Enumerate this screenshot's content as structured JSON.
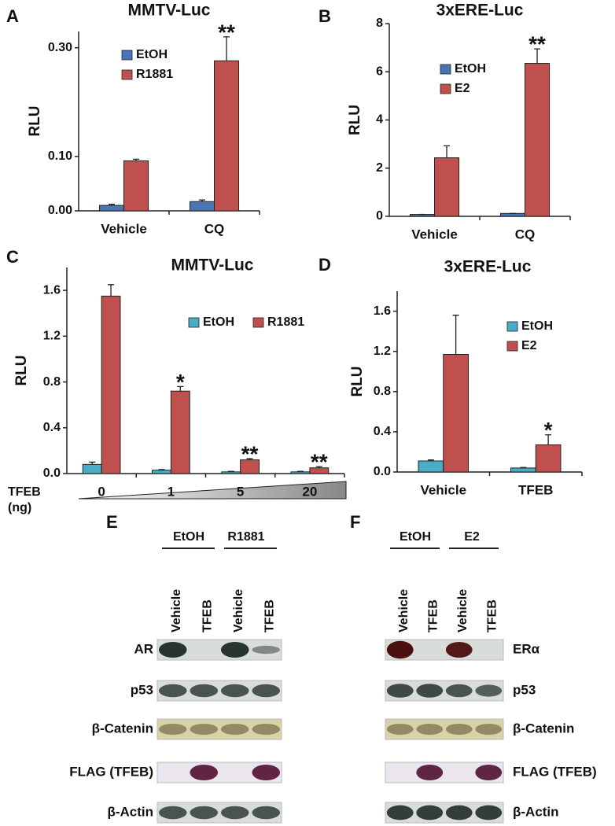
{
  "chart_data": [
    {
      "type": "bar",
      "panel_label": "A",
      "title": "MMTV-Luc",
      "y_label": "RLU",
      "categories": [
        "Vehicle",
        "CQ"
      ],
      "series": [
        {
          "name": "EtOH",
          "color": "#4a74b6",
          "values": [
            0.01,
            0.017
          ],
          "errors": [
            0.002,
            0.003
          ]
        },
        {
          "name": "R1881",
          "color": "#c0504d",
          "values": [
            0.092,
            0.276
          ],
          "errors": [
            0.003,
            0.044
          ]
        }
      ],
      "annotations": [
        null,
        "**"
      ],
      "ylim": [
        0,
        0.33
      ],
      "yticks": [
        {
          "value": 0,
          "label": "0.00"
        },
        {
          "value": 0.1,
          "label": "0.10"
        },
        {
          "value": 0.3,
          "label": "0.30"
        }
      ]
    },
    {
      "type": "bar",
      "panel_label": "B",
      "title": "3xERE-Luc",
      "y_label": "RLU",
      "categories": [
        "Vehicle",
        "CQ"
      ],
      "series": [
        {
          "name": "EtOH",
          "color": "#4a74b6",
          "values": [
            0.08,
            0.12
          ],
          "errors": [
            0,
            0
          ]
        },
        {
          "name": "E2",
          "color": "#c0504d",
          "values": [
            2.43,
            6.35
          ],
          "errors": [
            0.5,
            0.6
          ]
        }
      ],
      "annotations": [
        null,
        "**"
      ],
      "ylim": [
        0,
        8
      ],
      "yticks": [
        0,
        2,
        4,
        6,
        8
      ]
    },
    {
      "type": "bar",
      "panel_label": "C",
      "title": "MMTV-Luc",
      "y_label": "RLU",
      "x_label": [
        "TFEB",
        "(ng)"
      ],
      "categories": [
        "0",
        "1",
        "5",
        "20"
      ],
      "series": [
        {
          "name": "EtOH",
          "color": "#4bacc6",
          "values": [
            0.08,
            0.03,
            0.015,
            0.015
          ],
          "errors": [
            0.02,
            0.005,
            0.005,
            0.005
          ]
        },
        {
          "name": "R1881",
          "color": "#c0504d",
          "values": [
            1.55,
            0.72,
            0.12,
            0.05
          ],
          "errors": [
            0.1,
            0.04,
            0.01,
            0.01
          ]
        }
      ],
      "annotations": [
        null,
        "*",
        "**",
        "**"
      ],
      "ylim": [
        0,
        1.8
      ],
      "yticks": [
        {
          "value": 0,
          "label": "0.0"
        },
        0.4,
        0.8,
        1.2,
        1.6
      ]
    },
    {
      "type": "bar",
      "panel_label": "D",
      "title": "3xERE-Luc",
      "y_label": "RLU",
      "categories": [
        "Vehicle",
        "TFEB"
      ],
      "series": [
        {
          "name": "EtOH",
          "color": "#4bacc6",
          "values": [
            0.11,
            0.04
          ],
          "errors": [
            0.01,
            0.005
          ]
        },
        {
          "name": "E2",
          "color": "#c0504d",
          "values": [
            1.17,
            0.27
          ],
          "errors": [
            0.39,
            0.1
          ]
        }
      ],
      "annotations": [
        null,
        "*"
      ],
      "ylim": [
        0,
        1.8
      ],
      "yticks": [
        {
          "value": 0,
          "label": "0.0"
        },
        0.4,
        0.8,
        1.2,
        1.6
      ]
    }
  ],
  "blots": [
    {
      "panel_label": "E",
      "groups": [
        "EtOH",
        "R1881"
      ],
      "lanes": [
        "Vehicle",
        "TFEB",
        "Vehicle",
        "TFEB"
      ],
      "rows": [
        "AR",
        "p53",
        "β-Catenin",
        "FLAG (TFEB)",
        "β-Actin"
      ]
    },
    {
      "panel_label": "F",
      "groups": [
        "EtOH",
        "E2"
      ],
      "lanes": [
        "Vehicle",
        "TFEB",
        "Vehicle",
        "TFEB"
      ],
      "rows": [
        "ERα",
        "p53",
        "β-Catenin",
        "FLAG (TFEB)",
        "β-Actin"
      ]
    }
  ]
}
